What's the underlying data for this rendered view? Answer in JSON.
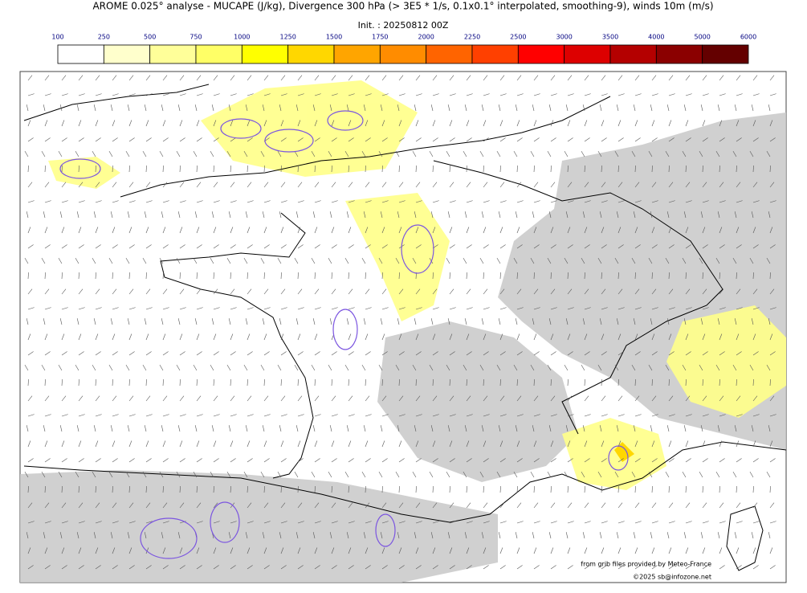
{
  "header": {
    "title": "AROME 0.025° analyse - MUCAPE (J/kg), Divergence 300 hPa (> 3E5 * 1/s, 0.1x0.1° interpolated, smoothing-9), winds 10m (m/s)",
    "init": "Init. : 20250812 00Z"
  },
  "colorbar": {
    "ticks": [
      100,
      250,
      500,
      750,
      1000,
      1250,
      1500,
      1750,
      2000,
      2250,
      2500,
      3000,
      3500,
      4000,
      5000,
      6000
    ],
    "colors": [
      "#ffffff",
      "#ffffcc",
      "#ffff99",
      "#ffff66",
      "#ffff00",
      "#ffd700",
      "#ffa500",
      "#ff8c00",
      "#ff6400",
      "#ff4000",
      "#ff0000",
      "#dd0000",
      "#b40000",
      "#8b0000",
      "#640000"
    ]
  },
  "credits": {
    "source": "from grib files provided by Meteo-France",
    "copyright": "©2025 sb@infozone.net"
  }
}
